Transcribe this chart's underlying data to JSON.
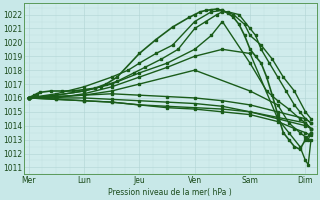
{
  "bg_color": "#c8e8e8",
  "plot_bg_color": "#d0ecec",
  "grid_color_major": "#b0d4d4",
  "grid_color_minor": "#c0dede",
  "line_color": "#1a5c1a",
  "xlabel": "Pression niveau de la mer( hPa )",
  "yticks": [
    1011,
    1012,
    1013,
    1014,
    1015,
    1016,
    1017,
    1018,
    1019,
    1020,
    1021,
    1022
  ],
  "ylim": [
    1010.5,
    1022.8
  ],
  "day_labels": [
    "Mer",
    "Lun",
    "Jeu",
    "Ven",
    "Sam",
    "Dim"
  ],
  "day_positions": [
    0,
    1,
    2,
    3,
    4,
    5
  ],
  "xlim": [
    -0.08,
    5.2
  ],
  "lines": [
    {
      "x": [
        0.0,
        0.05,
        0.1,
        0.15,
        0.2,
        0.4,
        0.6,
        0.8,
        1.0,
        1.2,
        1.4,
        1.6,
        2.0,
        2.3,
        2.6,
        2.9,
        3.0,
        3.1,
        3.2,
        3.3,
        3.4,
        3.5,
        3.6,
        3.7,
        3.8,
        3.9,
        4.0,
        4.1,
        4.2,
        4.3,
        4.4,
        4.5,
        4.6,
        4.7,
        4.8,
        4.9,
        5.0,
        5.1
      ],
      "y": [
        1016.0,
        1016.1,
        1016.2,
        1016.3,
        1016.4,
        1016.5,
        1016.5,
        1016.5,
        1016.6,
        1016.7,
        1017.0,
        1017.5,
        1019.2,
        1020.2,
        1021.1,
        1021.8,
        1022.0,
        1022.2,
        1022.3,
        1022.35,
        1022.4,
        1022.3,
        1022.1,
        1021.8,
        1021.3,
        1020.5,
        1019.5,
        1019.0,
        1018.5,
        1017.5,
        1016.2,
        1014.8,
        1013.5,
        1013.0,
        1012.5,
        1012.3,
        1013.0,
        1013.5
      ],
      "marker": "s",
      "ms": 1.5,
      "lw": 1.2,
      "style": "-"
    },
    {
      "x": [
        0.0,
        0.5,
        1.0,
        1.5,
        1.8,
        2.0,
        2.3,
        2.6,
        3.0,
        3.3,
        3.5,
        3.7,
        3.9,
        4.0,
        4.2,
        4.4,
        4.6,
        4.8,
        5.0,
        5.1
      ],
      "y": [
        1016.0,
        1016.3,
        1016.8,
        1017.5,
        1018.0,
        1018.5,
        1019.2,
        1019.8,
        1021.5,
        1022.2,
        1022.3,
        1022.0,
        1021.3,
        1020.5,
        1019.8,
        1018.8,
        1017.5,
        1016.5,
        1015.0,
        1014.5
      ],
      "marker": "s",
      "ms": 1.5,
      "lw": 1.0,
      "style": "-"
    },
    {
      "x": [
        0.0,
        0.5,
        1.0,
        1.3,
        1.6,
        1.9,
        2.1,
        2.4,
        2.7,
        3.0,
        3.2,
        3.4,
        3.5,
        3.6,
        3.8,
        4.0,
        4.1,
        4.2,
        4.35,
        4.5,
        4.65,
        4.8,
        4.9,
        5.0,
        5.1
      ],
      "y": [
        1016.0,
        1016.2,
        1016.5,
        1016.8,
        1017.2,
        1017.8,
        1018.2,
        1018.8,
        1019.5,
        1021.0,
        1021.5,
        1022.0,
        1022.2,
        1022.2,
        1022.0,
        1021.0,
        1020.5,
        1019.5,
        1018.5,
        1017.5,
        1016.5,
        1015.5,
        1015.0,
        1014.5,
        1014.2
      ],
      "marker": "s",
      "ms": 1.5,
      "lw": 1.0,
      "style": "-"
    },
    {
      "x": [
        0.0,
        0.5,
        1.0,
        1.5,
        2.0,
        2.5,
        3.0,
        3.3,
        3.5,
        4.0,
        4.3,
        4.5,
        4.7,
        4.9,
        5.0,
        5.1
      ],
      "y": [
        1016.0,
        1016.2,
        1016.5,
        1017.0,
        1017.8,
        1018.5,
        1019.5,
        1020.5,
        1021.5,
        1018.5,
        1016.5,
        1015.8,
        1015.2,
        1014.5,
        1014.2,
        1013.8
      ],
      "marker": "s",
      "ms": 1.5,
      "lw": 1.0,
      "style": "-"
    },
    {
      "x": [
        0.0,
        0.5,
        1.0,
        1.5,
        2.0,
        2.5,
        3.0,
        3.5,
        4.0,
        4.5,
        5.0,
        5.1
      ],
      "y": [
        1016.0,
        1016.1,
        1016.2,
        1016.3,
        1016.2,
        1016.1,
        1016.0,
        1015.8,
        1015.5,
        1015.0,
        1014.5,
        1014.2
      ],
      "marker": "s",
      "ms": 1.5,
      "lw": 1.0,
      "style": "-"
    },
    {
      "x": [
        0.0,
        0.5,
        1.0,
        1.5,
        2.0,
        2.5,
        3.0,
        3.5,
        4.0,
        4.5,
        5.0,
        5.1
      ],
      "y": [
        1016.0,
        1016.0,
        1016.0,
        1015.9,
        1015.8,
        1015.7,
        1015.6,
        1015.4,
        1015.0,
        1014.5,
        1014.0,
        1013.8
      ],
      "marker": "s",
      "ms": 1.5,
      "lw": 1.0,
      "style": "-"
    },
    {
      "x": [
        0.0,
        0.5,
        1.0,
        1.5,
        2.0,
        2.5,
        3.0,
        3.5,
        4.0,
        4.5,
        5.0,
        5.1
      ],
      "y": [
        1016.0,
        1015.9,
        1015.8,
        1015.7,
        1015.5,
        1015.4,
        1015.3,
        1015.2,
        1015.0,
        1014.6,
        1014.2,
        1013.8
      ],
      "marker": "s",
      "ms": 1.5,
      "lw": 1.0,
      "style": "-"
    },
    {
      "x": [
        0.0,
        0.5,
        1.0,
        1.5,
        2.0,
        2.5,
        3.0,
        3.5,
        4.0,
        4.5,
        4.8,
        5.0,
        5.1
      ],
      "y": [
        1016.0,
        1015.9,
        1015.8,
        1015.7,
        1015.5,
        1015.3,
        1015.2,
        1015.0,
        1014.8,
        1014.3,
        1013.8,
        1013.5,
        1013.3
      ],
      "marker": "s",
      "ms": 1.5,
      "lw": 1.0,
      "style": "-"
    },
    {
      "x": [
        0.0,
        0.5,
        1.0,
        1.5,
        2.0,
        3.0,
        4.0,
        4.5,
        4.7,
        4.9,
        5.0,
        5.05,
        5.1
      ],
      "y": [
        1016.0,
        1016.1,
        1016.2,
        1016.5,
        1017.0,
        1018.0,
        1016.5,
        1015.5,
        1014.2,
        1013.5,
        1013.2,
        1013.0,
        1013.5
      ],
      "marker": "s",
      "ms": 1.5,
      "lw": 1.0,
      "style": "-"
    },
    {
      "x": [
        0.0,
        0.5,
        1.0,
        1.5,
        2.0,
        2.5,
        3.0,
        3.5,
        4.0,
        4.5,
        4.7,
        4.9,
        5.0,
        5.05,
        5.1
      ],
      "y": [
        1016.0,
        1016.0,
        1016.3,
        1016.8,
        1017.5,
        1018.2,
        1019.0,
        1019.5,
        1019.2,
        1014.5,
        1013.5,
        1012.5,
        1011.5,
        1011.2,
        1013.0
      ],
      "marker": "s",
      "ms": 1.5,
      "lw": 1.0,
      "style": "-"
    }
  ]
}
